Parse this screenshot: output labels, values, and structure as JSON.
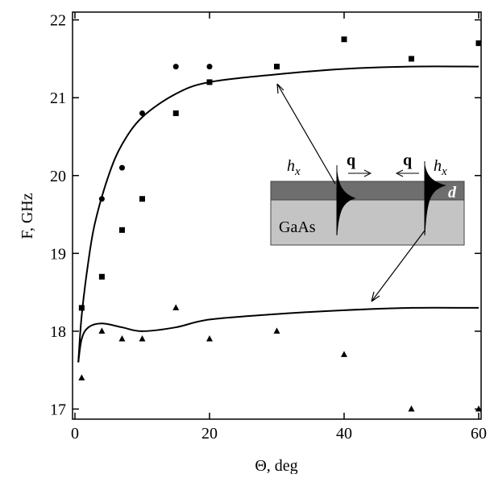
{
  "chart_data": {
    "type": "scatter",
    "x_label": "Θ, deg",
    "y_label": "F, GHz",
    "xlim": [
      0,
      60
    ],
    "xticks": [
      0,
      20,
      40,
      60
    ],
    "ylim": [
      16.87,
      22.1
    ],
    "yticks": [
      17,
      18,
      19,
      20,
      21,
      22
    ],
    "series": [
      {
        "marker": "circle",
        "color": "#000",
        "x": [
          4,
          7,
          10,
          15,
          20
        ],
        "values": [
          19.7,
          20.1,
          20.8,
          21.4,
          21.4
        ]
      },
      {
        "marker": "square",
        "color": "#000",
        "x": [
          1,
          4,
          7,
          10,
          15,
          20,
          30,
          40,
          50,
          60
        ],
        "values": [
          18.3,
          18.7,
          19.3,
          19.7,
          20.8,
          21.2,
          21.4,
          21.75,
          21.5,
          21.7
        ]
      },
      {
        "marker": "triangle",
        "color": "#000",
        "x": [
          1,
          4,
          7,
          10,
          15,
          20,
          30,
          40,
          50,
          60
        ],
        "values": [
          17.4,
          18.0,
          17.9,
          17.9,
          18.3,
          17.9,
          18.0,
          17.7,
          17.0,
          17.0
        ]
      },
      {
        "marker": "line",
        "color": "#000",
        "x": [
          0.5,
          1,
          2,
          3,
          5,
          7,
          10,
          15,
          20,
          30,
          40,
          50,
          60
        ],
        "values": [
          17.6,
          18.2,
          18.9,
          19.4,
          20.0,
          20.4,
          20.75,
          21.05,
          21.2,
          21.3,
          21.37,
          21.4,
          21.4
        ]
      },
      {
        "marker": "line",
        "color": "#000",
        "x": [
          0.5,
          1,
          2,
          4,
          7,
          10,
          15,
          20,
          30,
          40,
          50,
          60
        ],
        "values": [
          17.6,
          17.9,
          18.05,
          18.1,
          18.05,
          18.0,
          18.05,
          18.15,
          18.22,
          18.27,
          18.3,
          18.3
        ]
      }
    ],
    "inset": {
      "hx_left": "h",
      "hx_left_sub": "x",
      "q_left": "q",
      "q_right": "q",
      "hx_right": "h",
      "hx_right_sub": "x",
      "d": "d",
      "substrate": "GaAs"
    }
  }
}
